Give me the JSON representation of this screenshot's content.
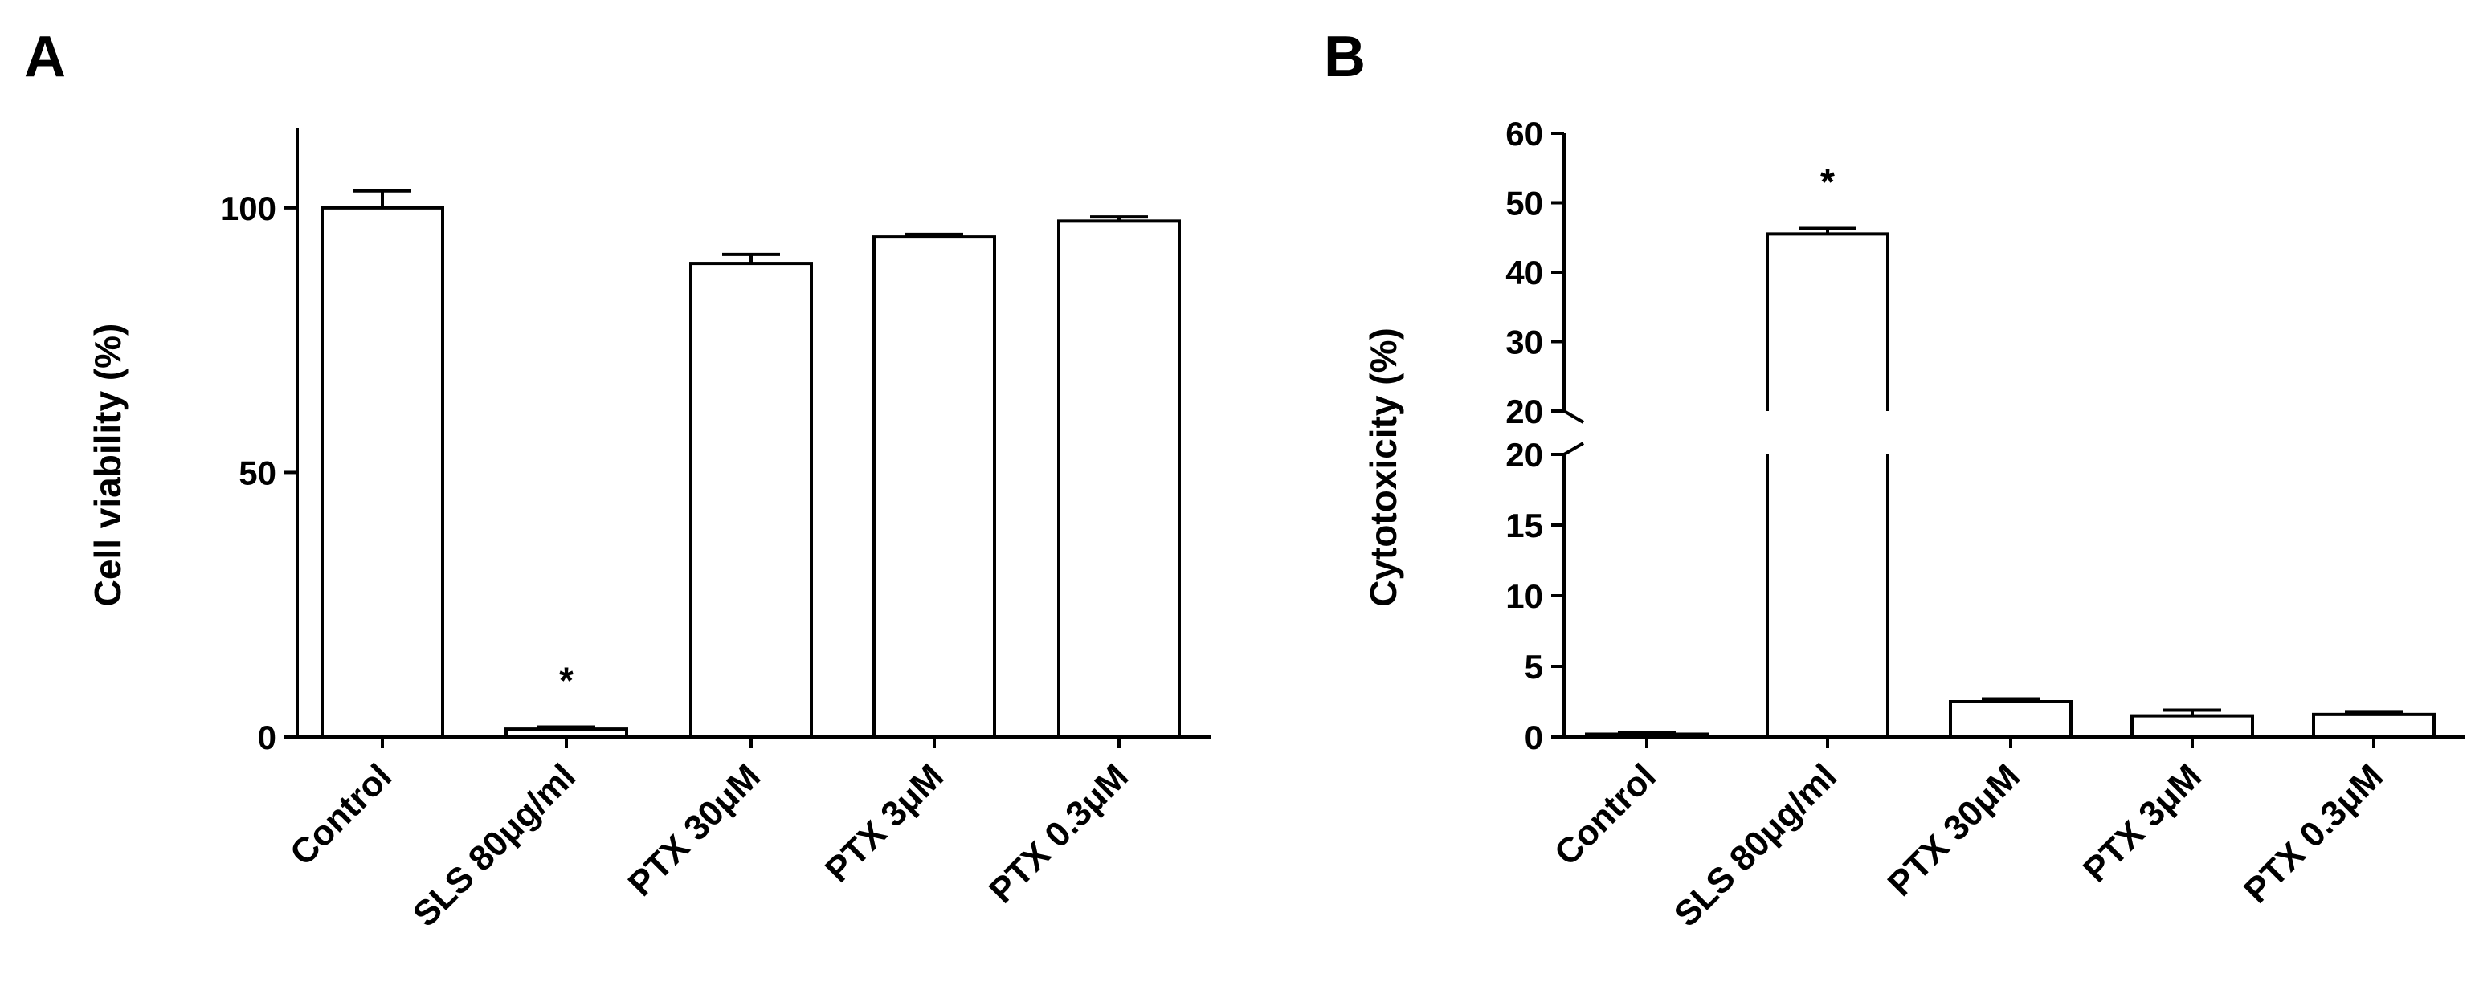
{
  "chart_data": [
    {
      "type": "bar",
      "panel_label": "A",
      "ylabel": "Cell viability (%)",
      "categories": [
        "Control",
        "SLS 80μg/ml",
        "PTX 30μM",
        "PTX 3μM",
        "PTX 0.3μM"
      ],
      "values": [
        100,
        1.5,
        89.5,
        94.5,
        97.5
      ],
      "errors": [
        3.2,
        0.4,
        1.7,
        0.5,
        0.8
      ],
      "annotations": [
        "",
        "*",
        "",
        "",
        ""
      ],
      "ylim": [
        0,
        115
      ],
      "yticks": [
        0,
        50,
        100
      ],
      "ytick_labels": [
        "0",
        "50",
        "100"
      ],
      "grid": false,
      "bar_fill": "#ffffff",
      "bar_edge": "#000000"
    },
    {
      "type": "bar",
      "panel_label": "B",
      "ylabel": "Cytotoxicity (%)",
      "categories": [
        "Control",
        "SLS 80μg/ml",
        "PTX 30μM",
        "PTX 3μM",
        "PTX 0.3μM"
      ],
      "values": [
        0.2,
        45.5,
        2.5,
        1.5,
        1.6
      ],
      "errors": [
        0.1,
        0.8,
        0.2,
        0.4,
        0.2
      ],
      "annotations": [
        "",
        "*",
        "",
        "",
        ""
      ],
      "axis_break": true,
      "lower_segment": {
        "ylim": [
          0,
          20
        ],
        "yticks": [
          0,
          5,
          10,
          15,
          20
        ],
        "ytick_labels": [
          "0",
          "5",
          "10",
          "15",
          "20"
        ]
      },
      "upper_segment": {
        "ylim": [
          20,
          60
        ],
        "yticks": [
          20,
          30,
          40,
          50,
          60
        ],
        "ytick_labels": [
          "20",
          "30",
          "40",
          "50",
          "60"
        ]
      },
      "grid": false,
      "bar_fill": "#ffffff",
      "bar_edge": "#000000"
    }
  ]
}
